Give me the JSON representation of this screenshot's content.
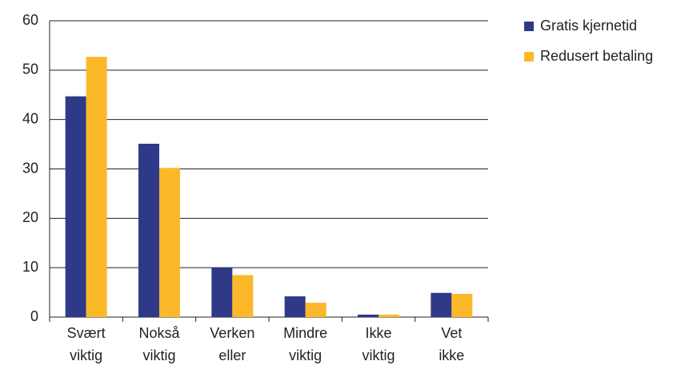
{
  "chart_data": {
    "type": "bar",
    "categories": [
      [
        "Svært",
        "viktig"
      ],
      [
        "Nokså",
        "viktig"
      ],
      [
        "Verken",
        "eller"
      ],
      [
        "Mindre",
        "viktig"
      ],
      [
        "Ikke",
        "viktig"
      ],
      [
        "Vet",
        "ikke"
      ]
    ],
    "series": [
      {
        "name": "Gratis kjernetid",
        "color": "#2e3a87",
        "values": [
          44.7,
          35.1,
          10,
          4.2,
          0.5,
          4.9
        ]
      },
      {
        "name": "Redusert betaling",
        "color": "#fbb829",
        "values": [
          52.7,
          30.2,
          8.5,
          2.9,
          0.5,
          4.7
        ]
      }
    ],
    "ylim": [
      0,
      60
    ],
    "yticks": [
      0,
      10,
      20,
      30,
      40,
      50,
      60
    ],
    "grid": true,
    "legend": "top-right"
  }
}
